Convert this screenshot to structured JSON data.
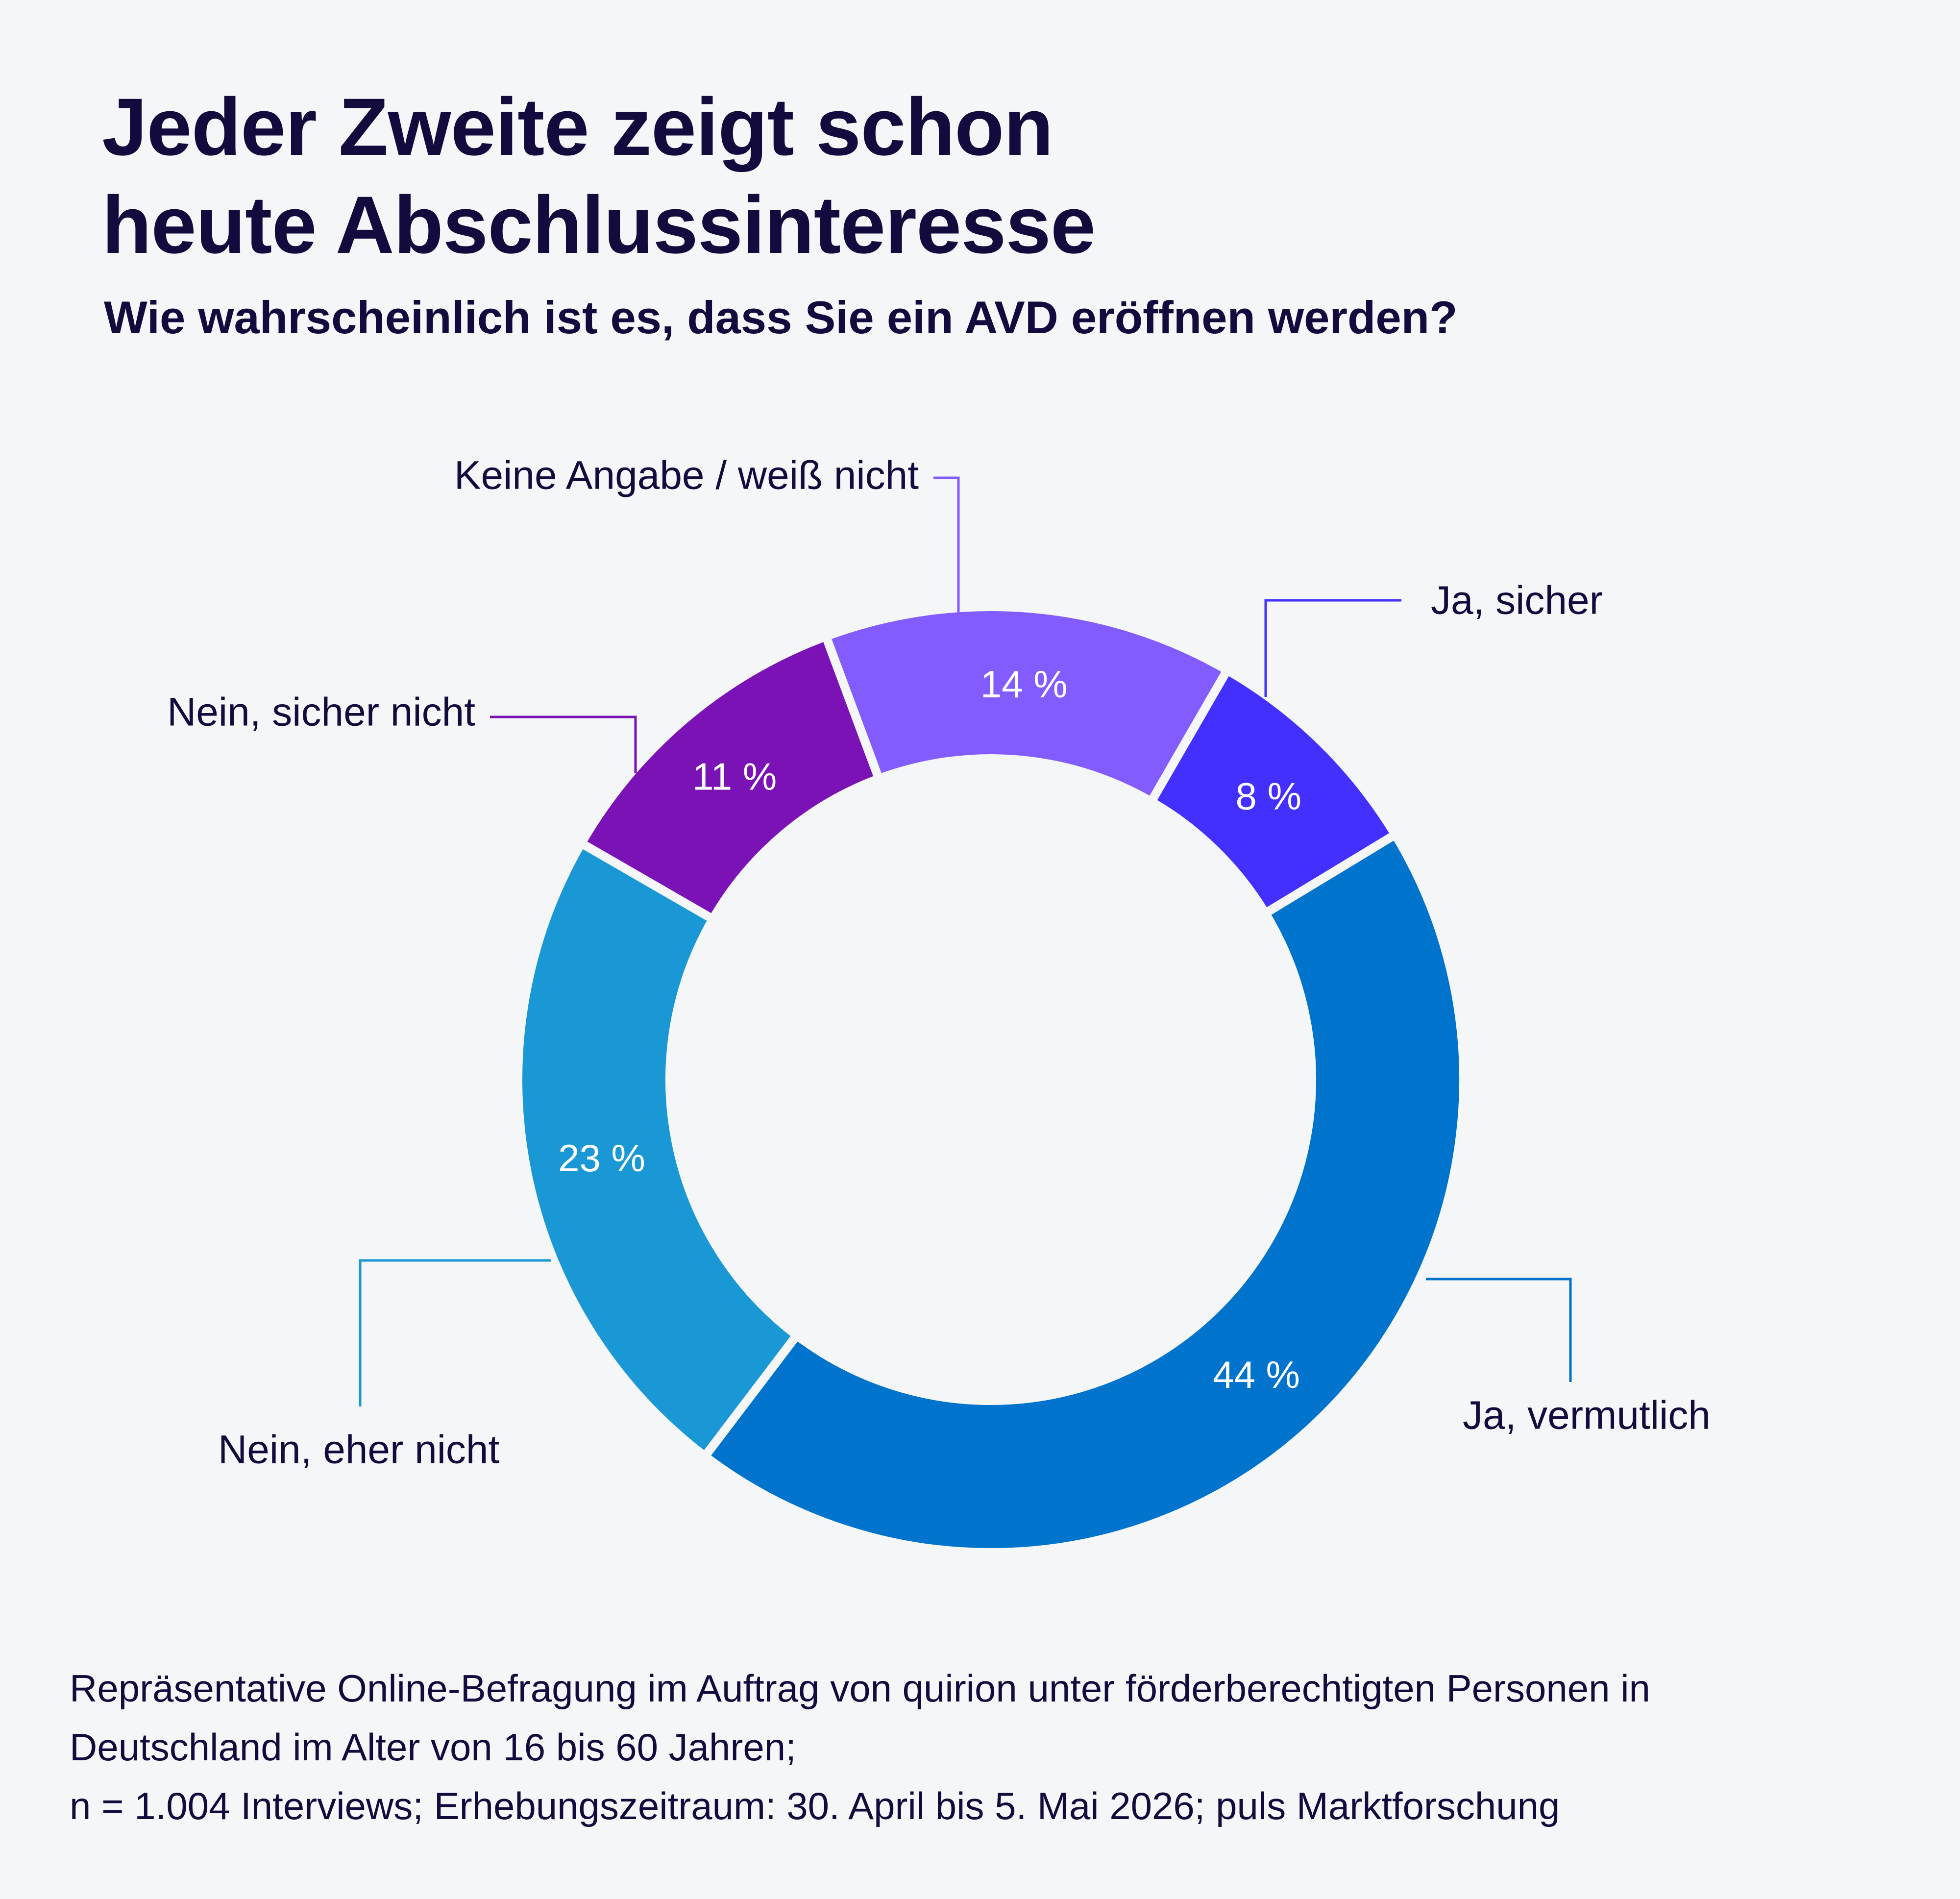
{
  "header": {
    "title_line1": "Jeder Zweite zeigt schon",
    "title_line2": "heute Abschlussinteresse",
    "subtitle": "Wie wahrscheinlich ist es, dass Sie ein AVD eröffnen werden?"
  },
  "chart_data": {
    "type": "pie",
    "variant": "donut",
    "unit": "%",
    "slices": [
      {
        "label": "Ja, sicher",
        "value": 8,
        "value_label": "8 %",
        "color": "#4330ff"
      },
      {
        "label": "Ja, vermutlich",
        "value": 44,
        "value_label": "44 %",
        "color": "#0073cc"
      },
      {
        "label": "Nein, eher nicht",
        "value": 23,
        "value_label": "23 %",
        "color": "#1a98d6"
      },
      {
        "label": "Nein, sicher nicht",
        "value": 11,
        "value_label": "11 %",
        "color": "#7a12b5"
      },
      {
        "label": "Keine Angabe / weiß nicht",
        "value": 14,
        "value_label": "14 %",
        "color": "#825cff"
      }
    ],
    "legend": "none",
    "labels": "outside-with-leader-lines"
  },
  "footnote": {
    "line1": "Repräsentative Online-Befragung im Auftrag von quirion unter förderberechtigten Personen in",
    "line2": "Deutschland im Alter von 16 bis 60 Jahren;",
    "line3": "n = 1.004 Interviews; Erhebungszeitraum: 30. April bis 5. Mai 2026; puls Marktforschung"
  }
}
